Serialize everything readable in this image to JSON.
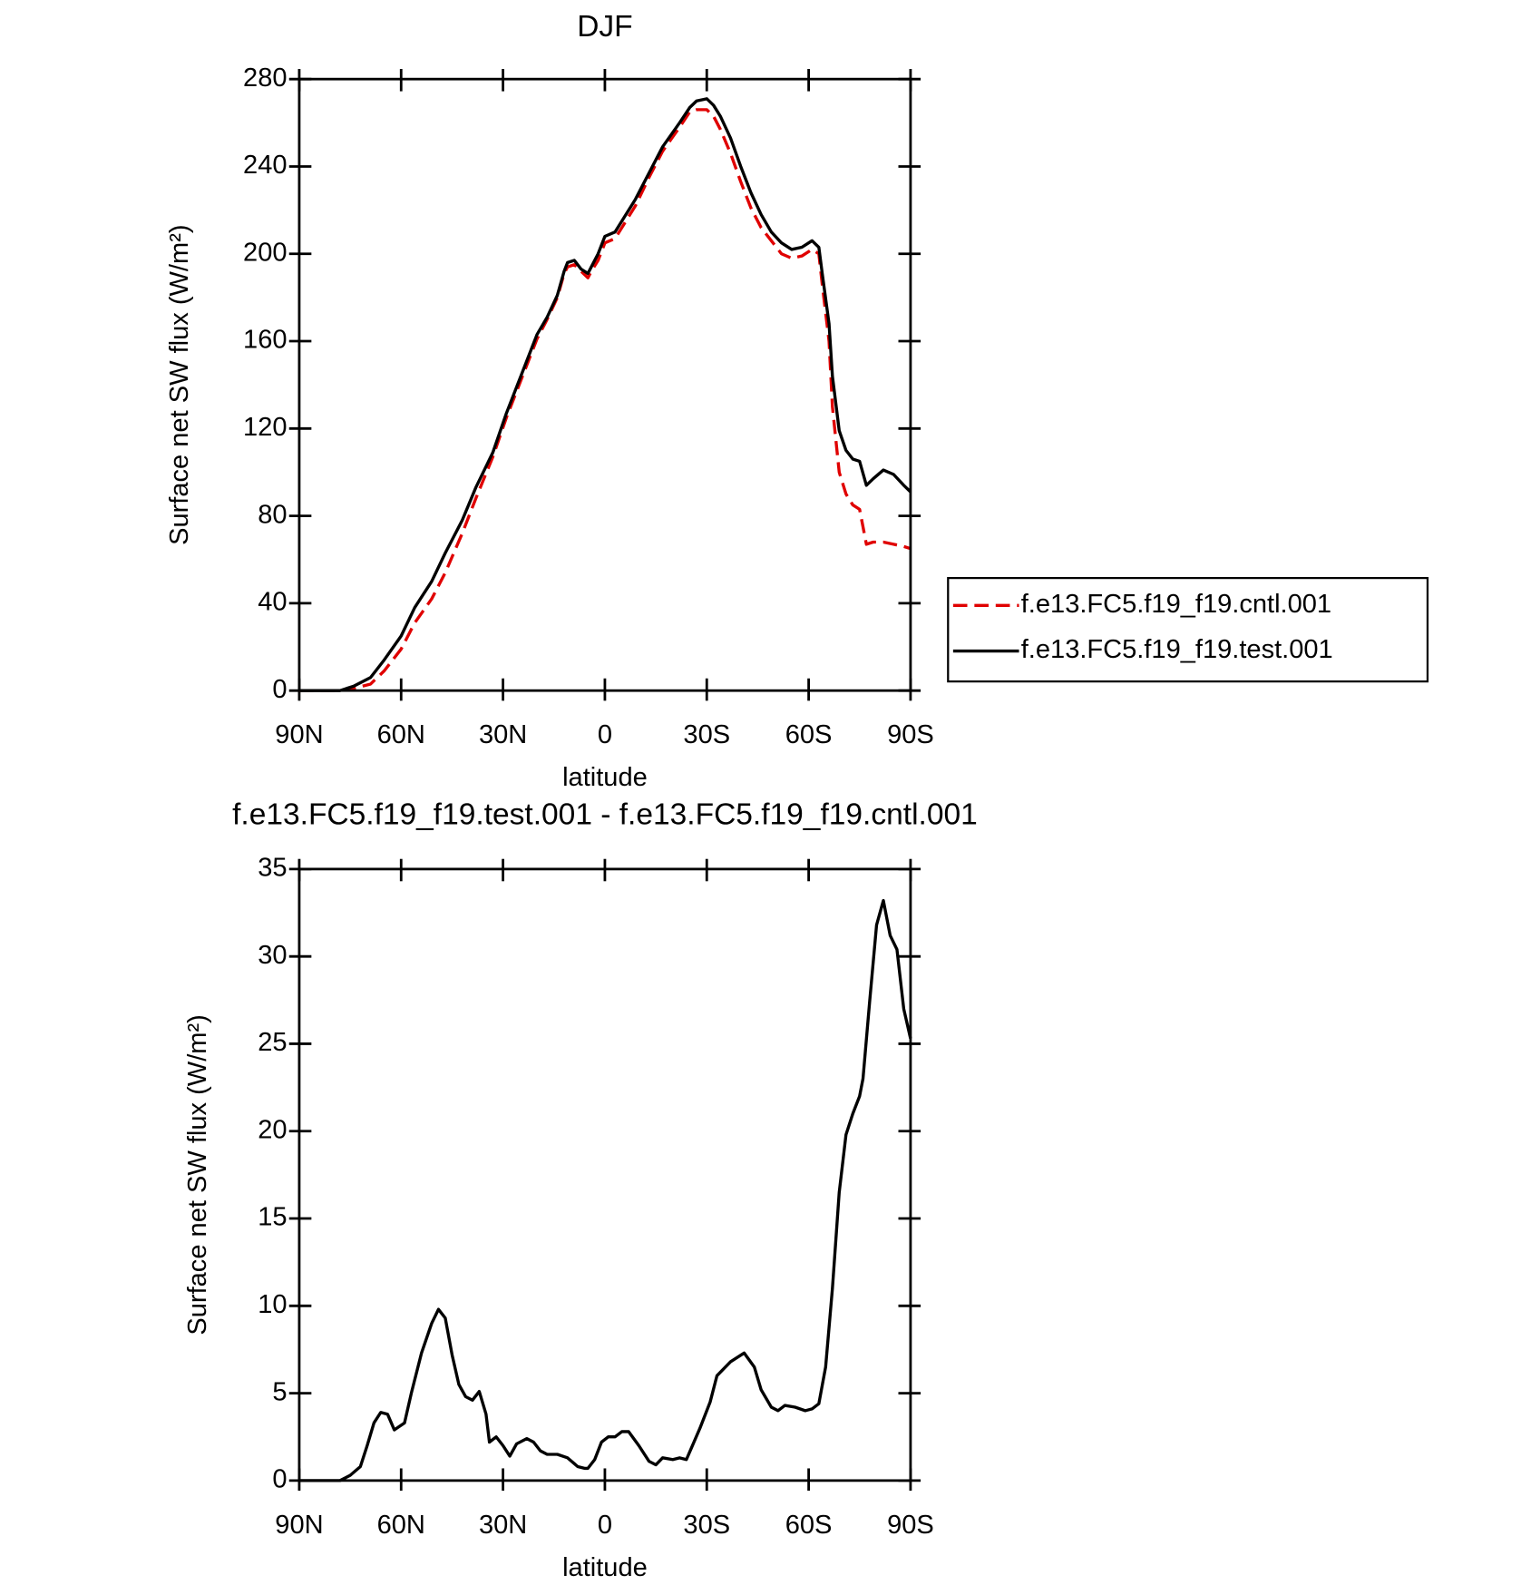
{
  "chart_data": [
    {
      "type": "line",
      "title": "DJF",
      "xlabel": "latitude",
      "ylabel": "Surface net SW flux (W/m²)",
      "x": [
        90,
        78,
        74,
        69,
        65,
        60,
        56,
        51,
        47,
        42,
        38,
        33,
        29,
        24,
        20,
        17,
        14,
        12,
        11,
        9,
        7,
        5,
        4,
        2,
        0,
        -3,
        -5,
        -9,
        -13,
        -17,
        -22,
        -25,
        -27,
        -30,
        -32,
        -34,
        -37,
        -40,
        -43,
        -46,
        -49,
        -52,
        -55,
        -58,
        -61,
        -63,
        -64,
        -66,
        -67,
        -69,
        -71,
        -73,
        -75,
        -77,
        -79,
        -82,
        -85,
        -88,
        -90
      ],
      "series": [
        {
          "name": "f.e13.FC5.f19_f19.cntl.001",
          "color": "#e00000",
          "dash": true,
          "values": [
            0,
            0,
            1,
            3,
            9,
            19,
            31,
            42,
            54,
            72,
            88,
            107,
            125,
            145,
            161,
            170,
            180,
            191,
            194,
            195,
            192,
            189,
            192,
            197,
            205,
            207,
            212,
            222,
            235,
            247,
            258,
            265,
            266,
            266,
            263,
            257,
            246,
            233,
            221,
            212,
            206,
            200,
            198,
            199,
            202,
            200,
            186,
            160,
            130,
            100,
            90,
            85,
            83,
            67,
            68,
            68,
            67,
            66,
            65
          ]
        },
        {
          "name": "f.e13.FC5.f19_f19.test.001",
          "color": "#000000",
          "dash": false,
          "values": [
            0,
            0,
            2,
            6,
            14,
            25,
            38,
            50,
            63,
            78,
            93,
            109,
            127,
            147,
            163,
            171,
            181,
            192,
            196,
            197,
            193,
            191,
            194,
            200,
            208,
            210,
            215,
            225,
            237,
            249,
            260,
            267,
            270,
            271,
            268,
            263,
            253,
            240,
            228,
            218,
            210,
            205,
            202,
            203,
            206,
            203,
            191,
            168,
            144,
            119,
            110,
            106,
            105,
            94,
            97,
            101,
            99,
            94,
            91
          ]
        }
      ],
      "xlim": [
        90,
        -90
      ],
      "xticks": [
        {
          "value": 90,
          "label": "90N"
        },
        {
          "value": 60,
          "label": "60N"
        },
        {
          "value": 30,
          "label": "30N"
        },
        0,
        {
          "value": -30,
          "label": "30S"
        },
        {
          "value": -60,
          "label": "60S"
        },
        {
          "value": -90,
          "label": "90S"
        }
      ],
      "ylim": [
        0,
        280
      ],
      "yticks": [
        0,
        40,
        80,
        120,
        160,
        200,
        240,
        280
      ],
      "legend": "right"
    },
    {
      "type": "line",
      "title": "f.e13.FC5.f19_f19.test.001 - f.e13.FC5.f19_f19.cntl.001",
      "xlabel": "latitude",
      "ylabel": "Surface net SW flux (W/m²)",
      "x": [
        90,
        78,
        75,
        72,
        70,
        68,
        66,
        64,
        62,
        59,
        57,
        54,
        51,
        49,
        47,
        45,
        43,
        41,
        39,
        37,
        35,
        34,
        32,
        30,
        28,
        26,
        23,
        21,
        19,
        17,
        14,
        11,
        8,
        6,
        5,
        3,
        1,
        -1,
        -3,
        -5,
        -7,
        -10,
        -13,
        -15,
        -17,
        -20,
        -22,
        -24,
        -28,
        -31,
        -33,
        -37,
        -41,
        -44,
        -46,
        -49,
        -51,
        -53,
        -56,
        -59,
        -61,
        -63,
        -65,
        -67,
        -69,
        -71,
        -73,
        -75,
        -76,
        -78,
        -80,
        -82,
        -84,
        -86,
        -88,
        -90
      ],
      "series": [
        {
          "color": "#000000",
          "dash": false,
          "values": [
            0,
            0,
            0.3,
            0.8,
            2.0,
            3.3,
            3.9,
            3.8,
            2.9,
            3.3,
            5,
            7.3,
            9,
            9.8,
            9.3,
            7.2,
            5.5,
            4.8,
            4.6,
            5.1,
            3.8,
            2.2,
            2.5,
            2.0,
            1.4,
            2.1,
            2.4,
            2.2,
            1.7,
            1.5,
            1.5,
            1.3,
            0.8,
            0.7,
            0.7,
            1.2,
            2.2,
            2.5,
            2.5,
            2.8,
            2.8,
            2.0,
            1.1,
            0.9,
            1.3,
            1.2,
            1.3,
            1.2,
            3,
            4.5,
            6,
            6.8,
            7.3,
            6.5,
            5.2,
            4.2,
            4,
            4.3,
            4.2,
            4,
            4.1,
            4.4,
            6.5,
            11,
            16.5,
            19.8,
            21,
            22,
            23,
            27.5,
            31.8,
            33.2,
            31.2,
            30.4,
            27,
            25.3
          ]
        }
      ],
      "xlim": [
        90,
        -90
      ],
      "xticks": [
        {
          "value": 90,
          "label": "90N"
        },
        {
          "value": 60,
          "label": "60N"
        },
        {
          "value": 30,
          "label": "30N"
        },
        0,
        {
          "value": -30,
          "label": "30S"
        },
        {
          "value": -60,
          "label": "60S"
        },
        {
          "value": -90,
          "label": "90S"
        }
      ],
      "ylim": [
        0,
        35
      ],
      "yticks": [
        0,
        5,
        10,
        15,
        20,
        25,
        30,
        35
      ]
    }
  ]
}
